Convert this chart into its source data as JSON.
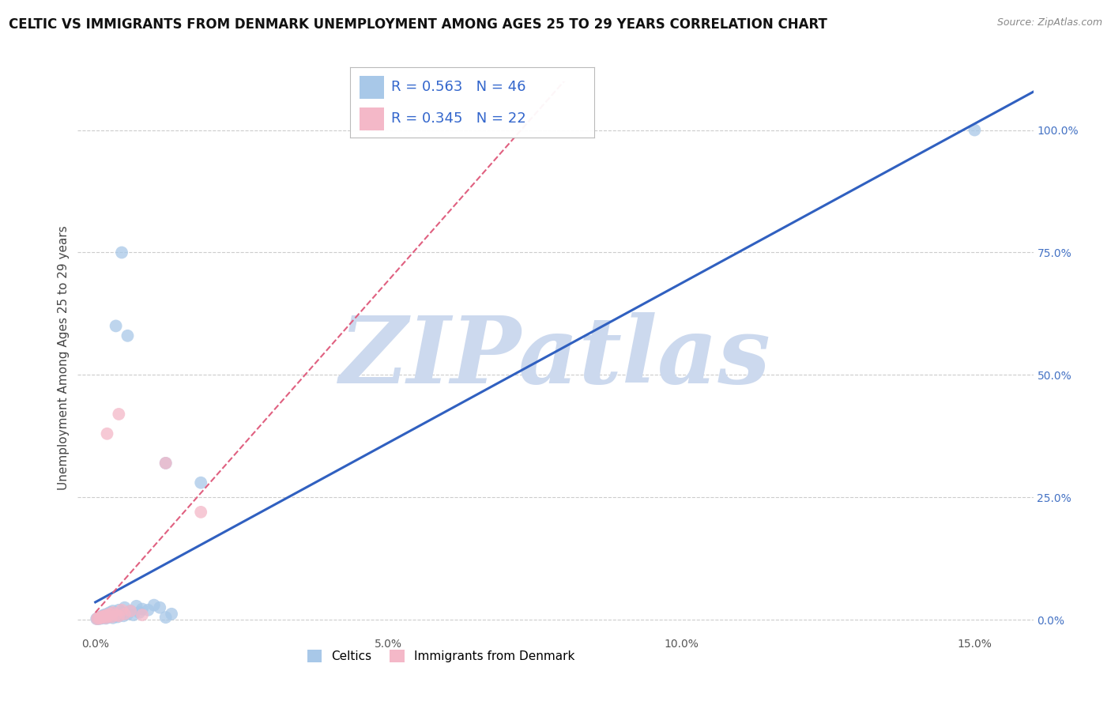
{
  "title": "CELTIC VS IMMIGRANTS FROM DENMARK UNEMPLOYMENT AMONG AGES 25 TO 29 YEARS CORRELATION CHART",
  "source": "Source: ZipAtlas.com",
  "ylabel_label": "Unemployment Among Ages 25 to 29 years",
  "x_ticks": [
    0.0,
    0.05,
    0.1,
    0.15
  ],
  "x_tick_labels": [
    "0.0%",
    "5.0%",
    "10.0%",
    "15.0%"
  ],
  "y_ticks": [
    0.0,
    0.25,
    0.5,
    0.75,
    1.0
  ],
  "y_tick_labels": [
    "0.0%",
    "25.0%",
    "50.0%",
    "75.0%",
    "100.0%"
  ],
  "xlim": [
    -0.003,
    0.16
  ],
  "ylim": [
    -0.03,
    1.1
  ],
  "celtic_color": "#a8c8e8",
  "denmark_color": "#f4b8c8",
  "celtic_R": 0.563,
  "celtic_N": 46,
  "denmark_R": 0.345,
  "denmark_N": 22,
  "legend_label_celtic": "Celtics",
  "legend_label_denmark": "Immigrants from Denmark",
  "watermark": "ZIPatlas",
  "watermark_color": "#ccd9ee",
  "grid_color": "#cccccc",
  "celtic_scatter": [
    [
      0.0002,
      0.002
    ],
    [
      0.0004,
      0.003
    ],
    [
      0.0005,
      0.004
    ],
    [
      0.0006,
      0.002
    ],
    [
      0.0008,
      0.005
    ],
    [
      0.001,
      0.003
    ],
    [
      0.001,
      0.006
    ],
    [
      0.0012,
      0.004
    ],
    [
      0.0012,
      0.008
    ],
    [
      0.0015,
      0.005
    ],
    [
      0.0015,
      0.01
    ],
    [
      0.0018,
      0.003
    ],
    [
      0.0018,
      0.007
    ],
    [
      0.002,
      0.005
    ],
    [
      0.002,
      0.012
    ],
    [
      0.0022,
      0.008
    ],
    [
      0.0025,
      0.006
    ],
    [
      0.0025,
      0.015
    ],
    [
      0.0028,
      0.01
    ],
    [
      0.003,
      0.004
    ],
    [
      0.003,
      0.018
    ],
    [
      0.0032,
      0.008
    ],
    [
      0.0035,
      0.012
    ],
    [
      0.0038,
      0.006
    ],
    [
      0.004,
      0.02
    ],
    [
      0.0042,
      0.01
    ],
    [
      0.0045,
      0.015
    ],
    [
      0.0048,
      0.008
    ],
    [
      0.005,
      0.025
    ],
    [
      0.0055,
      0.012
    ],
    [
      0.006,
      0.018
    ],
    [
      0.0065,
      0.01
    ],
    [
      0.007,
      0.028
    ],
    [
      0.0075,
      0.015
    ],
    [
      0.008,
      0.022
    ],
    [
      0.009,
      0.02
    ],
    [
      0.01,
      0.03
    ],
    [
      0.011,
      0.025
    ],
    [
      0.012,
      0.005
    ],
    [
      0.013,
      0.012
    ],
    [
      0.0035,
      0.6
    ],
    [
      0.0045,
      0.75
    ],
    [
      0.0055,
      0.58
    ],
    [
      0.012,
      0.32
    ],
    [
      0.018,
      0.28
    ],
    [
      0.15,
      1.0
    ]
  ],
  "denmark_scatter": [
    [
      0.0003,
      0.002
    ],
    [
      0.0005,
      0.004
    ],
    [
      0.0008,
      0.003
    ],
    [
      0.001,
      0.006
    ],
    [
      0.0012,
      0.005
    ],
    [
      0.0015,
      0.008
    ],
    [
      0.0018,
      0.004
    ],
    [
      0.002,
      0.01
    ],
    [
      0.0022,
      0.007
    ],
    [
      0.0025,
      0.012
    ],
    [
      0.0028,
      0.006
    ],
    [
      0.003,
      0.015
    ],
    [
      0.0035,
      0.01
    ],
    [
      0.004,
      0.008
    ],
    [
      0.0045,
      0.02
    ],
    [
      0.005,
      0.012
    ],
    [
      0.006,
      0.018
    ],
    [
      0.008,
      0.01
    ],
    [
      0.002,
      0.38
    ],
    [
      0.004,
      0.42
    ],
    [
      0.012,
      0.32
    ],
    [
      0.018,
      0.22
    ]
  ],
  "celtic_line_color": "#3060c0",
  "denmark_line_color": "#e06080",
  "title_fontsize": 12,
  "axis_label_fontsize": 11,
  "tick_fontsize": 10,
  "legend_fontsize": 13
}
